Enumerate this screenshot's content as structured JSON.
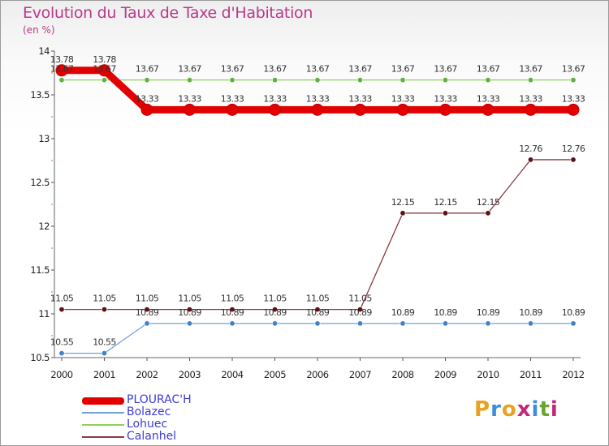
{
  "header": {
    "title": "Evolution du Taux de Taxe d'Habitation",
    "subtitle": "(en %)"
  },
  "brand": {
    "letters": [
      "P",
      "r",
      "o",
      "x",
      "i",
      "t",
      "i"
    ],
    "colors": [
      "#e8a21e",
      "#3f8fd8",
      "#e8a21e",
      "#c0287a",
      "#3f8fd8",
      "#6aa52f",
      "#c0287a"
    ]
  },
  "chart_data": {
    "type": "line",
    "categories": [
      "2000",
      "2001",
      "2002",
      "2003",
      "2004",
      "2005",
      "2006",
      "2007",
      "2008",
      "2009",
      "2010",
      "2011",
      "2012"
    ],
    "ylim": [
      10.5,
      14
    ],
    "yticks": [
      "10.5",
      "11",
      "11.5",
      "12",
      "12.5",
      "13",
      "13.5",
      "14"
    ],
    "grid": false,
    "legend_position": "bottom-left",
    "series": [
      {
        "name": "PLOURAC'H",
        "color": "#e30000",
        "marker_color": "#e30000",
        "values": [
          13.78,
          13.78,
          13.33,
          13.33,
          13.33,
          13.33,
          13.33,
          13.33,
          13.33,
          13.33,
          13.33,
          13.33,
          13.33
        ],
        "labels": [
          "13.78",
          "13.78",
          "13.33",
          "13.33",
          "13.33",
          "13.33",
          "13.33",
          "13.33",
          "13.33",
          "13.33",
          "13.33",
          "13.33",
          "13.33"
        ]
      },
      {
        "name": "Bolazec",
        "color": "#6ea2d8",
        "marker_color": "#3f83c6",
        "values": [
          10.55,
          10.55,
          10.89,
          10.89,
          10.89,
          10.89,
          10.89,
          10.89,
          10.89,
          10.89,
          10.89,
          10.89,
          10.89
        ],
        "labels": [
          "10.55",
          "10.55",
          "10.89",
          "10.89",
          "10.89",
          "10.89",
          "10.89",
          "10.89",
          "10.89",
          "10.89",
          "10.89",
          "10.89",
          "10.89"
        ]
      },
      {
        "name": "Lohuec",
        "color": "#8fd05a",
        "marker_color": "#5ab43a",
        "values": [
          13.67,
          13.67,
          13.67,
          13.67,
          13.67,
          13.67,
          13.67,
          13.67,
          13.67,
          13.67,
          13.67,
          13.67,
          13.67
        ],
        "labels": [
          "13.67",
          "13.67",
          "13.67",
          "13.67",
          "13.67",
          "13.67",
          "13.67",
          "13.67",
          "13.67",
          "13.67",
          "13.67",
          "13.67",
          "13.67"
        ]
      },
      {
        "name": "Calanhel",
        "color": "#8a3a42",
        "marker_color": "#5e1218",
        "values": [
          11.05,
          11.05,
          11.05,
          11.05,
          11.05,
          11.05,
          11.05,
          11.05,
          12.15,
          12.15,
          12.15,
          12.76,
          12.76
        ],
        "labels": [
          "11.05",
          "11.05",
          "11.05",
          "11.05",
          "11.05",
          "11.05",
          "11.05",
          "11.05",
          "12.15",
          "12.15",
          "12.15",
          "12.76",
          "12.76"
        ]
      }
    ]
  }
}
